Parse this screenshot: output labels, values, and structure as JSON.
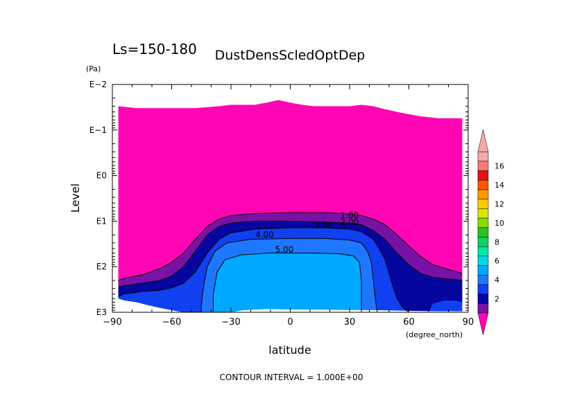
{
  "chart_data": {
    "type": "heatmap",
    "season_label": "Ls=150-180",
    "title": "DustDensScledOptDep",
    "ylabel": "Level",
    "yunits": "(Pa)",
    "xlabel": "latitude",
    "xunits": "(degree_north)",
    "footer": "CONTOUR INTERVAL = 1.000E+00",
    "xlim": [
      -90,
      90
    ],
    "ylim": [
      1000,
      0.01
    ],
    "yscale": "log",
    "xticks": [
      -90,
      -60,
      -30,
      0,
      30,
      60,
      90
    ],
    "yticks": [
      {
        "value": 0.01,
        "label": "E−2"
      },
      {
        "value": 0.1,
        "label": "E−1"
      },
      {
        "value": 1,
        "label": "E0"
      },
      {
        "value": 10,
        "label": "E1"
      },
      {
        "value": 100,
        "label": "E2"
      },
      {
        "value": 1000,
        "label": "E3"
      }
    ],
    "contour_labels": [
      {
        "text": "1.00",
        "lat": 30,
        "p": 7.5
      },
      {
        "text": "2.00",
        "lat": 30,
        "p": 10.5
      },
      {
        "text": "3.00",
        "lat": 17,
        "p": 12.5
      },
      {
        "text": "4.00",
        "lat": -13,
        "p": 20
      },
      {
        "text": "5.00",
        "lat": -3,
        "p": 42
      }
    ],
    "colorbar": {
      "levels": [
        1,
        2,
        3,
        4,
        5,
        6,
        7,
        8,
        9,
        10,
        11,
        12,
        13,
        14,
        15,
        16,
        17
      ],
      "tick_labels": [
        "2",
        "4",
        "6",
        "8",
        "10",
        "12",
        "14",
        "16"
      ],
      "tick_values": [
        2,
        4,
        6,
        8,
        10,
        12,
        14,
        16
      ],
      "colors": [
        "#7a11a6",
        "#0505a0",
        "#1040f0",
        "#1e78ff",
        "#00a8ff",
        "#00d8e8",
        "#00e8a8",
        "#10d060",
        "#30c020",
        "#88dd00",
        "#d8e800",
        "#ffcc00",
        "#ff9900",
        "#ff5500",
        "#e81010",
        "#ff7777",
        "#f5a8a8"
      ],
      "under_color": "#ff05b4",
      "over_color": "#f5a8a8"
    },
    "field": {
      "data_top": [
        [
          -87,
          0.03
        ],
        [
          -78,
          0.033
        ],
        [
          -60,
          0.033
        ],
        [
          -48,
          0.033
        ],
        [
          -36,
          0.03
        ],
        [
          -30,
          0.028
        ],
        [
          -18,
          0.028
        ],
        [
          -12,
          0.025
        ],
        [
          -6,
          0.022
        ],
        [
          0,
          0.025
        ],
        [
          6,
          0.028
        ],
        [
          12,
          0.03
        ],
        [
          18,
          0.03
        ],
        [
          30,
          0.03
        ],
        [
          36,
          0.028
        ],
        [
          42,
          0.03
        ],
        [
          48,
          0.035
        ],
        [
          54,
          0.04
        ],
        [
          60,
          0.045
        ],
        [
          66,
          0.05
        ],
        [
          75,
          0.055
        ],
        [
          87,
          0.055
        ]
      ],
      "bottom_edge": [
        [
          -87,
          500
        ],
        [
          -84,
          550
        ],
        [
          -78,
          600
        ],
        [
          -72,
          700
        ],
        [
          -66,
          800
        ],
        [
          -60,
          900
        ],
        [
          -54,
          1000
        ],
        [
          -45,
          1000
        ],
        [
          -42,
          1000
        ],
        [
          -36,
          1000
        ],
        [
          -30,
          1000
        ],
        [
          -24,
          900
        ],
        [
          -12,
          850
        ],
        [
          0,
          870
        ],
        [
          15,
          880
        ],
        [
          30,
          890
        ],
        [
          45,
          900
        ],
        [
          60,
          930
        ],
        [
          75,
          950
        ],
        [
          87,
          950
        ]
      ],
      "contours": [
        {
          "level": 1,
          "points": [
            [
              -87,
              200
            ],
            [
              -84,
              180
            ],
            [
              -75,
              150
            ],
            [
              -66,
              110
            ],
            [
              -60,
              80
            ],
            [
              -54,
              50
            ],
            [
              -48,
              25
            ],
            [
              -42,
              13
            ],
            [
              -36,
              9
            ],
            [
              -30,
              7.5
            ],
            [
              -18,
              6.8
            ],
            [
              0,
              6.5
            ],
            [
              18,
              6.5
            ],
            [
              30,
              7
            ],
            [
              36,
              7.5
            ],
            [
              42,
              9
            ],
            [
              48,
              12
            ],
            [
              54,
              20
            ],
            [
              60,
              35
            ],
            [
              66,
              60
            ],
            [
              72,
              90
            ],
            [
              87,
              140
            ]
          ]
        },
        {
          "level": 2,
          "points": [
            [
              -87,
              280
            ],
            [
              -84,
              260
            ],
            [
              -75,
              230
            ],
            [
              -66,
              200
            ],
            [
              -60,
              160
            ],
            [
              -54,
              100
            ],
            [
              -48,
              45
            ],
            [
              -42,
              20
            ],
            [
              -36,
              13
            ],
            [
              -30,
              11
            ],
            [
              -18,
              10
            ],
            [
              0,
              10
            ],
            [
              18,
              10.5
            ],
            [
              30,
              11
            ],
            [
              36,
              12
            ],
            [
              42,
              16
            ],
            [
              48,
              25
            ],
            [
              54,
              50
            ],
            [
              60,
              90
            ],
            [
              66,
              140
            ],
            [
              72,
              170
            ],
            [
              87,
              200
            ]
          ]
        },
        {
          "level": 3,
          "points": [
            [
              -87,
              450
            ],
            [
              -84,
              400
            ],
            [
              -75,
              350
            ],
            [
              -66,
              330
            ],
            [
              -60,
              290
            ],
            [
              -54,
              230
            ],
            [
              -48,
              130
            ],
            [
              -42,
              50
            ],
            [
              -36,
              25
            ],
            [
              -30,
              18
            ],
            [
              -18,
              15
            ],
            [
              0,
              14
            ],
            [
              18,
              14
            ],
            [
              30,
              15
            ],
            [
              36,
              17
            ],
            [
              42,
              25
            ],
            [
              45,
              40
            ],
            [
              48,
              70
            ],
            [
              51,
              200
            ],
            [
              54,
              500
            ],
            [
              57,
              800
            ],
            [
              60,
              1000
            ]
          ]
        },
        {
          "level": 4,
          "points": [
            [
              -45,
              1000
            ],
            [
              -45,
              700
            ],
            [
              -44,
              300
            ],
            [
              -42,
              100
            ],
            [
              -38,
              45
            ],
            [
              -32,
              30
            ],
            [
              -20,
              25
            ],
            [
              0,
              24
            ],
            [
              18,
              24
            ],
            [
              30,
              26
            ],
            [
              36,
              30
            ],
            [
              39,
              45
            ],
            [
              41,
              80
            ],
            [
              42,
              200
            ],
            [
              43,
              500
            ],
            [
              44,
              1000
            ]
          ]
        },
        {
          "level": 5,
          "points": [
            [
              -39,
              1000
            ],
            [
              -39,
              400
            ],
            [
              -37,
              130
            ],
            [
              -33,
              70
            ],
            [
              -25,
              55
            ],
            [
              -10,
              50
            ],
            [
              10,
              50
            ],
            [
              25,
              52
            ],
            [
              32,
              58
            ],
            [
              35,
              80
            ],
            [
              36,
              200
            ],
            [
              36,
              1000
            ]
          ]
        }
      ],
      "low_patches": [
        {
          "level": 3,
          "points": [
            [
              -87,
              680
            ],
            [
              -84,
              640
            ],
            [
              -81,
              720
            ],
            [
              -84,
              800
            ],
            [
              -87,
              820
            ]
          ]
        },
        {
          "level": 3,
          "points": [
            [
              70,
              1000
            ],
            [
              72,
              650
            ],
            [
              78,
              550
            ],
            [
              84,
              560
            ],
            [
              87,
              600
            ],
            [
              87,
              1000
            ]
          ]
        }
      ]
    }
  }
}
